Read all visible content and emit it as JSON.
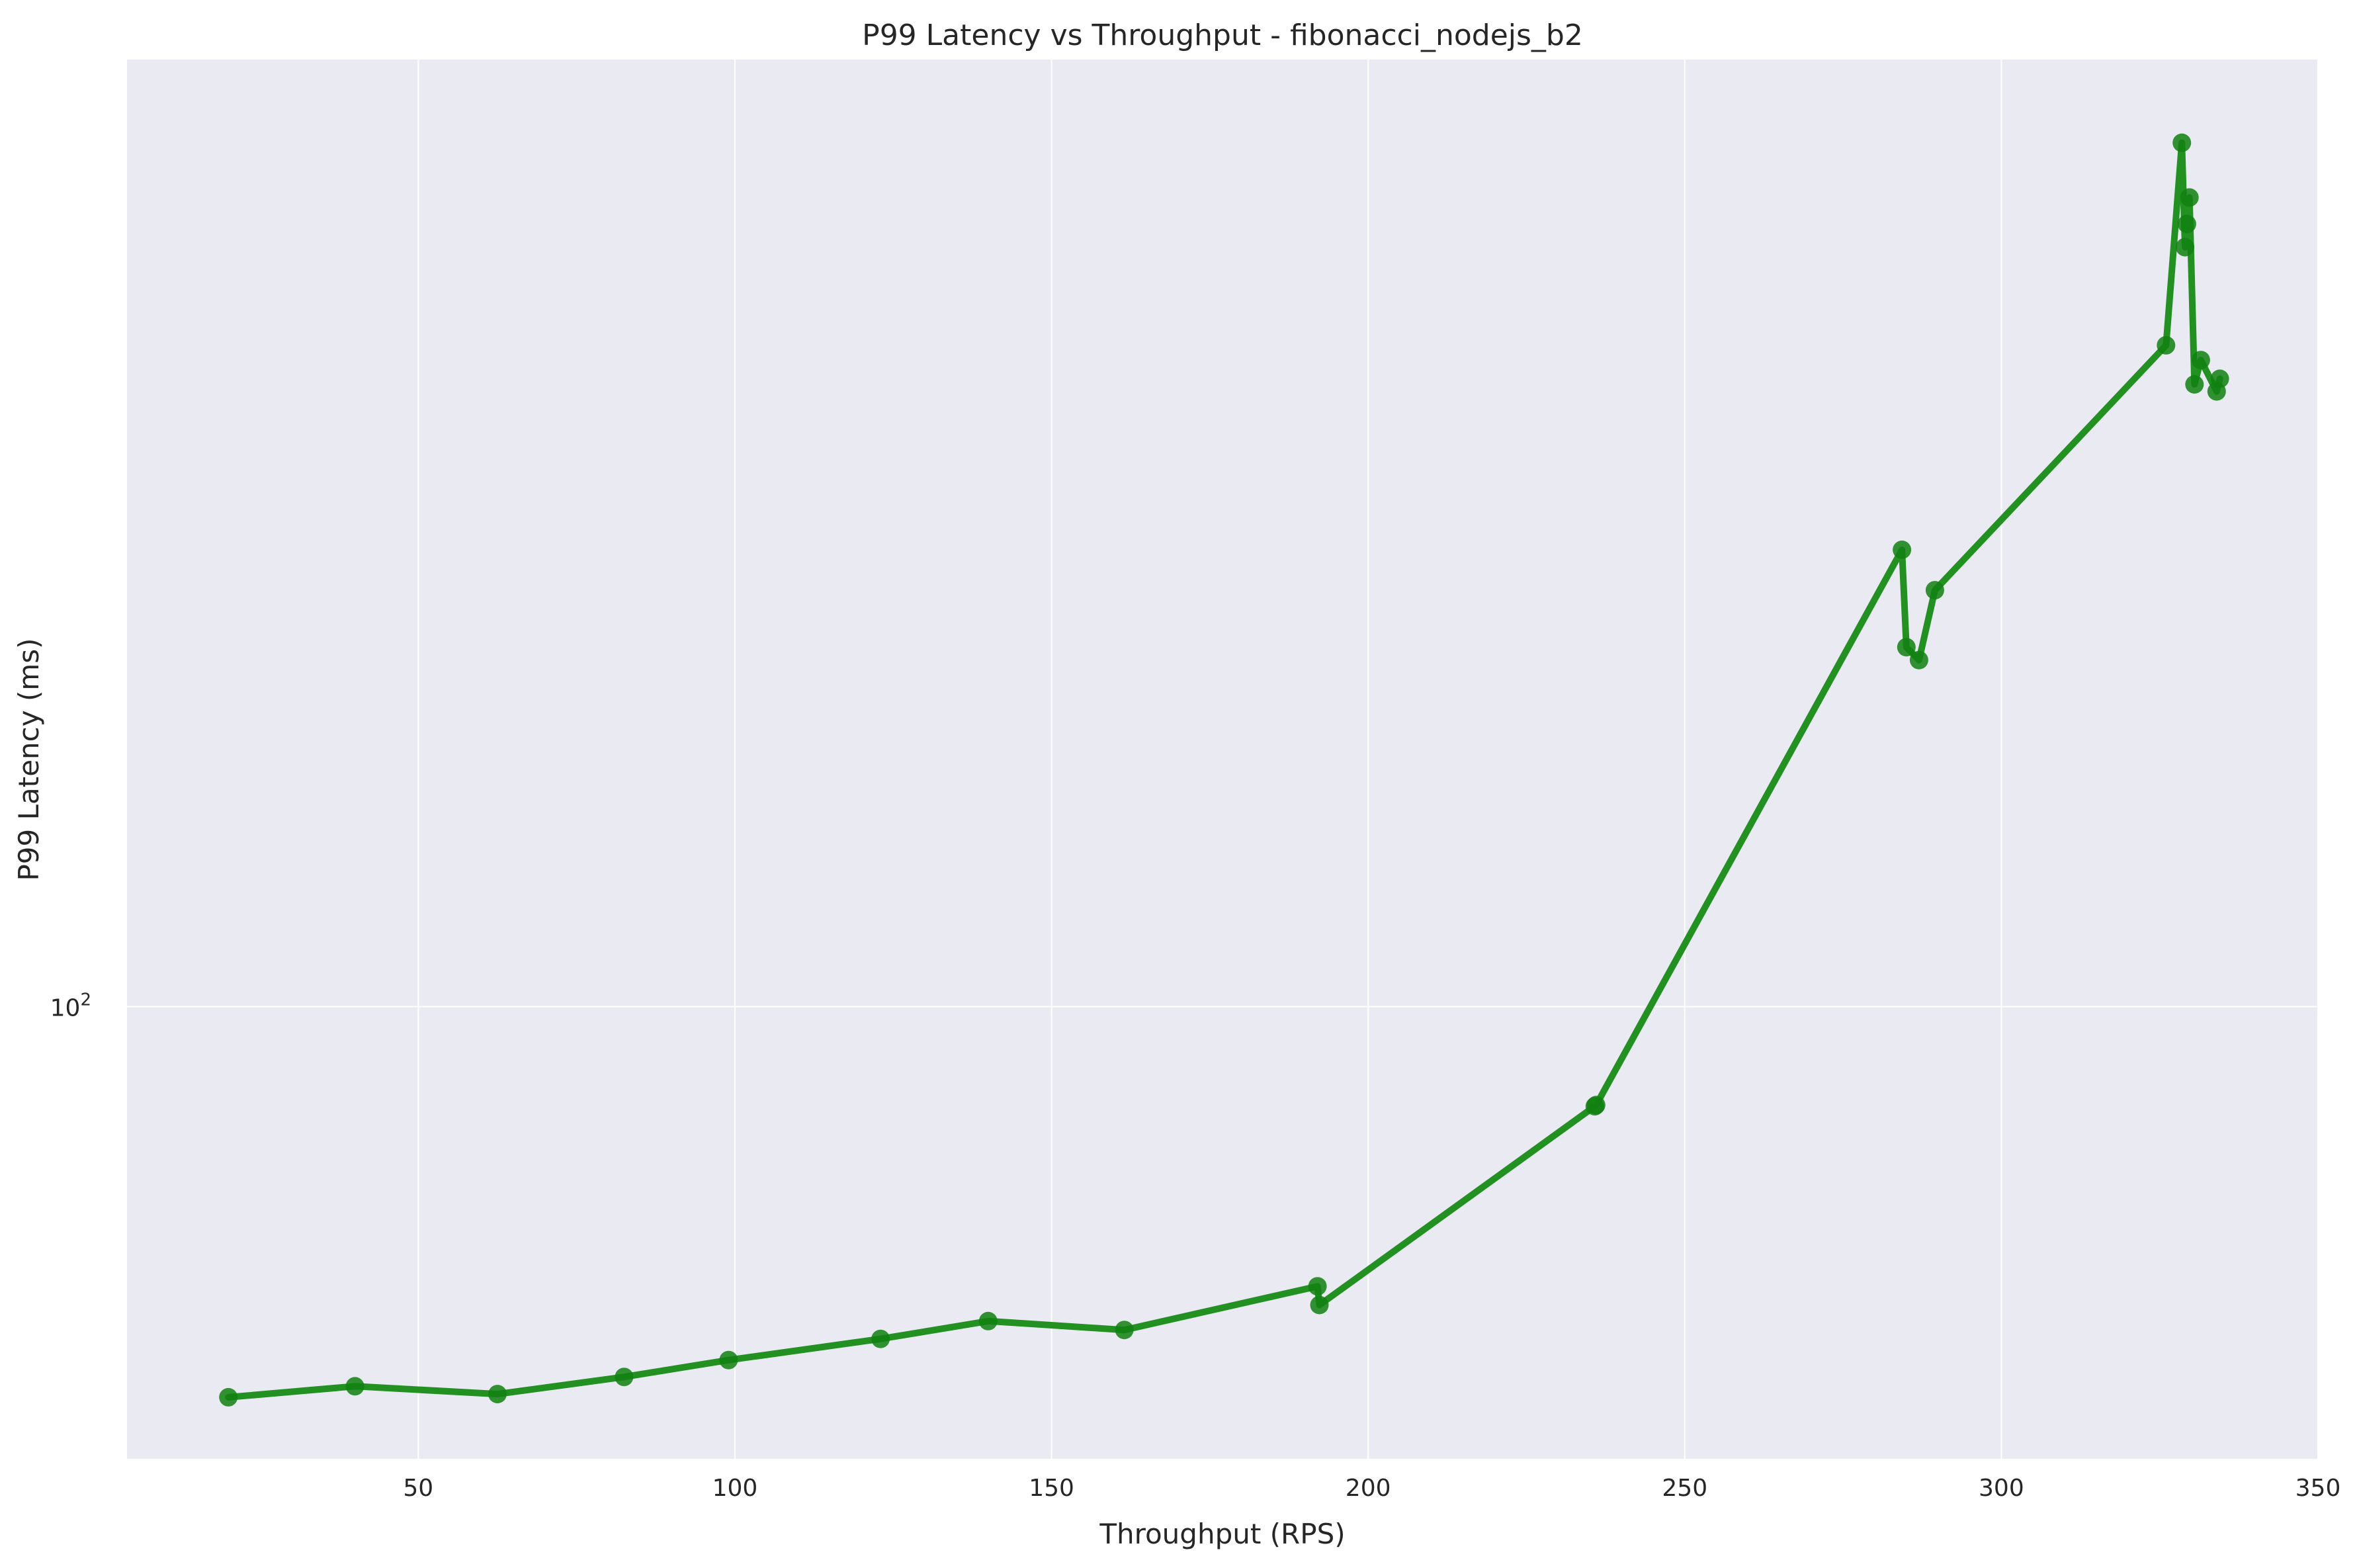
{
  "chart_data": {
    "type": "line",
    "title": "P99 Latency vs Throughput - fibonacci_nodejs_b2",
    "xlabel": "Throughput (RPS)",
    "ylabel": "P99 Latency (ms)",
    "xlim": [
      4,
      350
    ],
    "ylim": [
      66.5,
      235
    ],
    "yscale": "log",
    "grid": true,
    "x_ticks": [
      50,
      100,
      150,
      200,
      250,
      300,
      350
    ],
    "x_tick_labels": [
      "50",
      "100",
      "150",
      "200",
      "250",
      "300",
      "350"
    ],
    "y_major_tick": {
      "value": 100,
      "base": "10",
      "exponent": "2"
    },
    "colors": {
      "background": "#eaeaf2",
      "grid": "#ffffff",
      "line": "#229122",
      "marker": "#108010"
    },
    "series": [
      {
        "name": "fibonacci_nodejs_b2",
        "x": [
          20,
          40,
          62.5,
          82.5,
          99,
          123,
          140,
          161.5,
          192,
          192.3,
          235.8,
          236,
          284.3,
          285,
          287,
          289.5,
          326,
          328.5,
          329,
          329.3,
          329.7,
          330.5,
          331.5,
          334,
          334.5
        ],
        "y": [
          70.3,
          71.0,
          70.5,
          71.6,
          72.7,
          74.1,
          75.3,
          74.7,
          77.7,
          76.4,
          91.4,
          91.5,
          151.0,
          138.3,
          136.7,
          145.6,
          181.6,
          218.0,
          198.4,
          202.6,
          207.5,
          175.3,
          179.2,
          174.2,
          176.2
        ]
      }
    ]
  }
}
